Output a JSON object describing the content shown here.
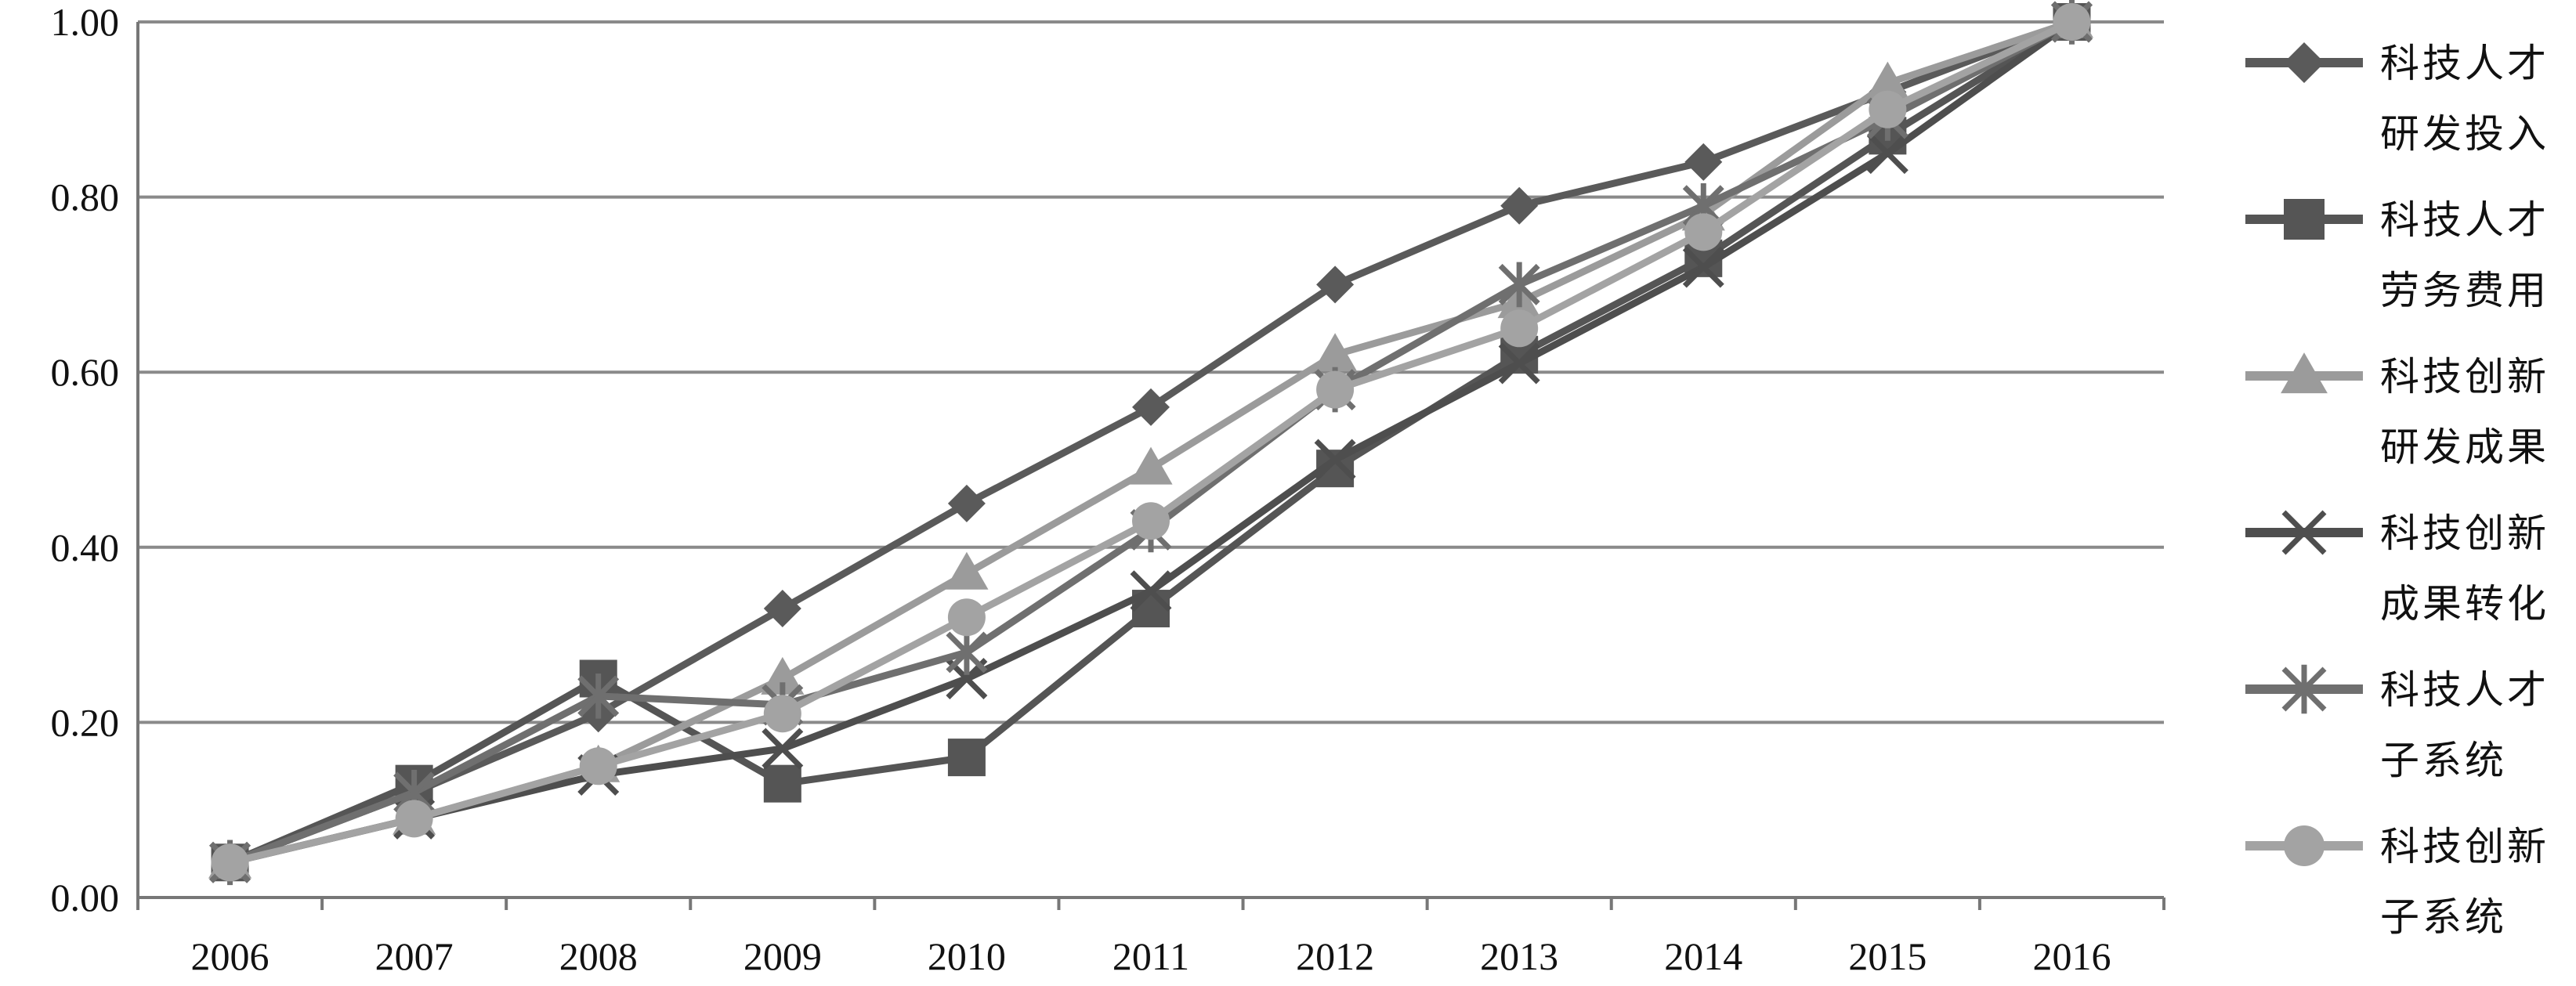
{
  "chart_data": {
    "type": "line",
    "title": "",
    "xlabel": "",
    "ylabel": "",
    "x": [
      "2006",
      "2007",
      "2008",
      "2009",
      "2010",
      "2011",
      "2012",
      "2013",
      "2014",
      "2015",
      "2016"
    ],
    "ylim": [
      0,
      1
    ],
    "yticks": [
      "0.00",
      "0.20",
      "0.40",
      "0.60",
      "0.80",
      "1.00"
    ],
    "grid": true,
    "legend_position": "right",
    "series": [
      {
        "name_lines": [
          "科技人才",
          "研发投入"
        ],
        "marker": "diamond",
        "color": "#5a5a5a",
        "values": [
          0.04,
          0.12,
          0.21,
          0.33,
          0.45,
          0.56,
          0.7,
          0.79,
          0.84,
          0.92,
          1.0
        ]
      },
      {
        "name_lines": [
          "科技人才",
          "劳务费用"
        ],
        "marker": "square",
        "color": "#555555",
        "values": [
          0.04,
          0.13,
          0.25,
          0.13,
          0.16,
          0.33,
          0.49,
          0.62,
          0.73,
          0.87,
          1.0
        ]
      },
      {
        "name_lines": [
          "科技创新",
          "研发成果"
        ],
        "marker": "triangle",
        "color": "#9b9b9b",
        "values": [
          0.04,
          0.09,
          0.15,
          0.25,
          0.37,
          0.49,
          0.62,
          0.68,
          0.78,
          0.93,
          1.0
        ]
      },
      {
        "name_lines": [
          "科技创新",
          "成果转化"
        ],
        "marker": "x",
        "color": "#4e4e4e",
        "values": [
          0.04,
          0.09,
          0.14,
          0.17,
          0.25,
          0.35,
          0.5,
          0.61,
          0.72,
          0.85,
          1.0
        ]
      },
      {
        "name_lines": [
          "科技人才",
          "子系统"
        ],
        "marker": "star",
        "color": "#6f6f6f",
        "values": [
          0.04,
          0.12,
          0.23,
          0.22,
          0.28,
          0.42,
          0.58,
          0.7,
          0.79,
          0.89,
          1.0
        ]
      },
      {
        "name_lines": [
          "科技创新",
          "子系统"
        ],
        "marker": "circle",
        "color": "#a3a3a3",
        "values": [
          0.04,
          0.09,
          0.15,
          0.21,
          0.32,
          0.43,
          0.58,
          0.65,
          0.76,
          0.9,
          1.0
        ]
      }
    ]
  }
}
